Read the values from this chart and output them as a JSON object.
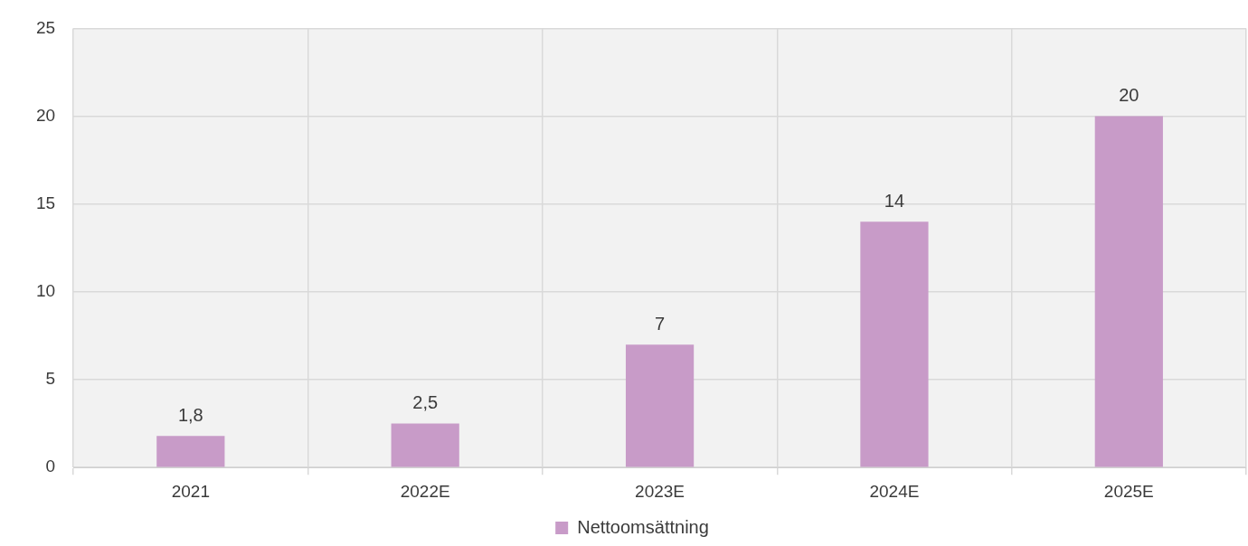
{
  "chart_data": {
    "type": "bar",
    "categories": [
      "2021",
      "2022E",
      "2023E",
      "2024E",
      "2025E"
    ],
    "series": [
      {
        "name": "Nettoomsättning",
        "color": "#c89bc8",
        "values": [
          1.8,
          2.5,
          7,
          14,
          20
        ],
        "value_labels": [
          "1,8",
          "2,5",
          "7",
          "14",
          "20"
        ]
      }
    ],
    "ylim": [
      0,
      25
    ],
    "yticks": [
      0,
      5,
      10,
      15,
      20,
      25
    ],
    "grid": true,
    "legend": "bottom"
  }
}
